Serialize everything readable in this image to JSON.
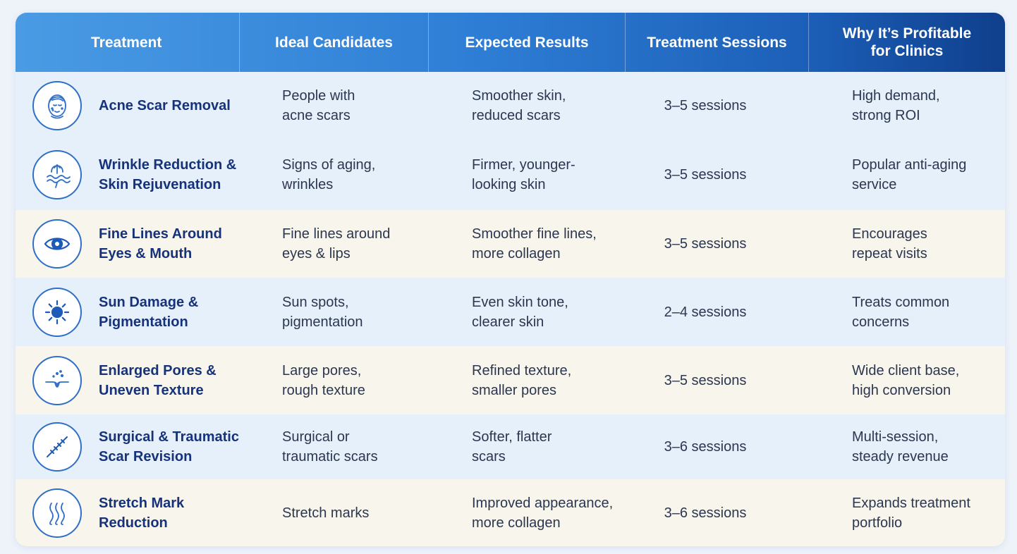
{
  "header": {
    "treatment": "Treatment",
    "ideal_candidates": "Ideal Candidates",
    "expected_results": "Expected Results",
    "treatment_sessions": "Treatment Sessions",
    "why_profitable": "Why It’s Profitable\nfor Clinics"
  },
  "colors": {
    "header_gradient_start": "#4a9be4",
    "header_gradient_end": "#0f3f8c",
    "row_blue": "#e6f0fb",
    "row_cream": "#f8f5ec",
    "treatment_name": "#15327a",
    "icon_stroke": "#2f6fc8"
  },
  "rows": [
    {
      "icon": "face-icon",
      "treatment": "Acne Scar Removal",
      "candidates": "People with\nacne scars",
      "results": "Smoother skin,\nreduced scars",
      "sessions": "3–5 sessions",
      "why": "High demand,\nstrong ROI"
    },
    {
      "icon": "skin-lift-icon",
      "treatment": "Wrinkle Reduction &\nSkin Rejuvenation",
      "candidates": "Signs of aging,\nwrinkles",
      "results": "Firmer, younger-\nlooking skin",
      "sessions": "3–5 sessions",
      "why": "Popular anti-aging\nservice"
    },
    {
      "icon": "eye-icon",
      "treatment": "Fine Lines Around\nEyes & Mouth",
      "candidates": "Fine lines around\neyes & lips",
      "results": "Smoother fine lines,\nmore collagen",
      "sessions": "3–5 sessions",
      "why": "Encourages\nrepeat visits"
    },
    {
      "icon": "sun-icon",
      "treatment": "Sun Damage &\nPigmentation",
      "candidates": "Sun spots,\npigmentation",
      "results": "Even skin tone,\nclearer skin",
      "sessions": "2–4 sessions",
      "why": "Treats common\nconcerns"
    },
    {
      "icon": "pore-icon",
      "treatment": "Enlarged Pores &\nUneven Texture",
      "candidates": "Large pores,\nrough texture",
      "results": "Refined texture,\nsmaller pores",
      "sessions": "3–5 sessions",
      "why": "Wide client base,\nhigh conversion"
    },
    {
      "icon": "scar-stitch-icon",
      "treatment": "Surgical & Traumatic\nScar Revision",
      "candidates": "Surgical or\ntraumatic scars",
      "results": "Softer, flatter\nscars",
      "sessions": "3–6 sessions",
      "why": "Multi-session,\nsteady revenue"
    },
    {
      "icon": "wavy-lines-icon",
      "treatment": "Stretch Mark\nReduction",
      "candidates": "Stretch marks",
      "results": "Improved appearance,\nmore collagen",
      "sessions": "3–6 sessions",
      "why": "Expands treatment\nportfolio"
    }
  ]
}
